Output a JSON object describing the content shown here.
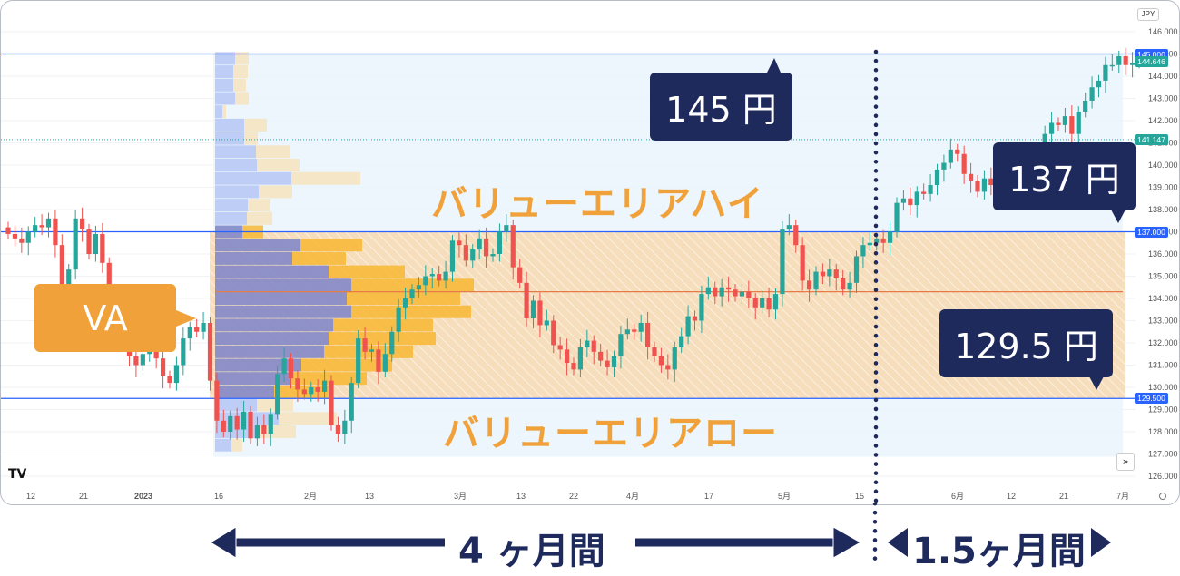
{
  "chart_data": {
    "type": "candlestick",
    "currency_label": "JPY",
    "y_ticks": [
      126,
      127,
      128,
      129,
      130,
      131,
      132,
      133,
      134,
      135,
      136,
      137,
      138,
      139,
      140,
      141,
      142,
      143,
      144,
      145,
      146
    ],
    "x_ticks": [
      "12",
      "21",
      "2023",
      "16",
      "2月",
      "13",
      "3月",
      "13",
      "22",
      "4月",
      "17",
      "5月",
      "15",
      "6月",
      "12",
      "21",
      "7月"
    ],
    "ylim": [
      125.6,
      146.5
    ],
    "price_tags": [
      {
        "label": "145.000",
        "value": 145.0,
        "color": "#2962ff"
      },
      {
        "label": "144.646",
        "value": 144.646,
        "color": "#26a69a"
      },
      {
        "label": "141.147",
        "value": 141.147,
        "color": "#26a69a"
      },
      {
        "label": "137.000",
        "value": 137.0,
        "color": "#2962ff"
      },
      {
        "label": "129.500",
        "value": 129.5,
        "color": "#2962ff"
      }
    ],
    "levels": {
      "high": 145.0,
      "value_area_high": 137.0,
      "value_area_low": 129.5,
      "poc": 134.3,
      "low": 127.2
    },
    "closes": [
      136.9,
      136.7,
      136.5,
      137.0,
      137.3,
      137.2,
      137.6,
      136.4,
      134.6,
      135.3,
      137.6,
      137.1,
      136.0,
      136.9,
      135.6,
      133.8,
      133.1,
      132.2,
      131.4,
      131.0,
      131.5,
      132.4,
      131.3,
      130.5,
      130.2,
      131.0,
      132.2,
      132.7,
      132.5,
      132.9,
      130.3,
      128.5,
      128.0,
      128.7,
      128.1,
      128.9,
      127.7,
      128.3,
      127.9,
      128.8,
      130.6,
      131.3,
      130.4,
      129.9,
      129.7,
      130.0,
      129.8,
      130.3,
      128.3,
      127.9,
      128.5,
      130.2,
      132.2,
      131.6,
      131.7,
      130.7,
      131.5,
      132.5,
      133.6,
      134.0,
      134.4,
      134.6,
      135.0,
      135.1,
      134.8,
      135.2,
      136.6,
      136.4,
      135.7,
      136.2,
      136.7,
      135.9,
      136.0,
      137.0,
      137.3,
      135.4,
      134.7,
      133.1,
      133.9,
      132.8,
      133.0,
      131.9,
      131.7,
      131.1,
      130.8,
      131.8,
      132.1,
      131.6,
      131.2,
      130.9,
      131.4,
      132.4,
      132.6,
      132.5,
      132.9,
      131.8,
      131.4,
      131.0,
      130.8,
      131.8,
      132.3,
      133.2,
      133.0,
      134.2,
      134.5,
      134.1,
      134.5,
      134.4,
      134.1,
      134.3,
      134.0,
      133.6,
      134.0,
      133.5,
      134.2,
      137.1,
      137.3,
      136.4,
      134.8,
      134.4,
      135.2,
      135.0,
      135.3,
      134.9,
      134.4,
      134.7,
      135.9,
      136.4,
      136.5,
      136.7,
      136.5,
      137.0,
      138.3,
      138.5,
      138.2,
      138.8,
      138.7,
      139.1,
      139.8,
      140.1,
      140.7,
      140.5,
      139.6,
      139.3,
      138.8,
      139.4,
      139.1,
      139.8,
      140.1,
      139.6,
      139.3,
      139.9,
      140.0,
      140.6,
      141.4,
      141.9,
      141.8,
      142.2,
      141.4,
      142.4,
      142.9,
      143.5,
      143.8,
      144.5,
      144.5,
      144.9,
      144.5,
      144.6,
      144.6
    ],
    "volume_profile": [
      {
        "price": 144.8,
        "up": 22,
        "down": 15
      },
      {
        "price": 144.2,
        "up": 20,
        "down": 16
      },
      {
        "price": 143.6,
        "up": 20,
        "down": 14
      },
      {
        "price": 143.0,
        "up": 22,
        "down": 15
      },
      {
        "price": 142.4,
        "up": 8,
        "down": 4
      },
      {
        "price": 141.8,
        "up": 32,
        "down": 25
      },
      {
        "price": 141.2,
        "up": 32,
        "down": 15
      },
      {
        "price": 140.6,
        "up": 45,
        "down": 38
      },
      {
        "price": 140.0,
        "up": 46,
        "down": 47
      },
      {
        "price": 139.4,
        "up": 84,
        "down": 76
      },
      {
        "price": 138.8,
        "up": 48,
        "down": 37
      },
      {
        "price": 138.2,
        "up": 36,
        "down": 25
      },
      {
        "price": 137.6,
        "up": 35,
        "down": 28
      },
      {
        "price": 137.0,
        "up": 30,
        "down": 23
      },
      {
        "price": 136.4,
        "up": 94,
        "down": 68
      },
      {
        "price": 135.8,
        "up": 85,
        "down": 59
      },
      {
        "price": 135.2,
        "up": 125,
        "down": 84
      },
      {
        "price": 134.6,
        "up": 150,
        "down": 135
      },
      {
        "price": 134.0,
        "up": 145,
        "down": 125
      },
      {
        "price": 133.4,
        "up": 150,
        "down": 132
      },
      {
        "price": 132.8,
        "up": 130,
        "down": 110
      },
      {
        "price": 132.2,
        "up": 125,
        "down": 118
      },
      {
        "price": 131.6,
        "up": 120,
        "down": 98
      },
      {
        "price": 131.0,
        "up": 95,
        "down": 100
      },
      {
        "price": 130.4,
        "up": 82,
        "down": 85
      },
      {
        "price": 129.8,
        "up": 65,
        "down": 60
      },
      {
        "price": 129.2,
        "up": 46,
        "down": 40
      },
      {
        "price": 128.6,
        "up": 70,
        "down": 64
      },
      {
        "price": 128.0,
        "up": 47,
        "down": 42
      },
      {
        "price": 127.4,
        "up": 18,
        "down": 12
      }
    ]
  },
  "annotations": {
    "callout_145": "145 円",
    "callout_137": "137 円",
    "callout_1295": "129.5 円",
    "va_label": "VA",
    "vah_label": "バリューエリアハイ",
    "val_label": "バリューエリアロー",
    "period_left": "4 ヶ月間",
    "period_right": "1.5ヶ月間"
  },
  "colors": {
    "up": "#26a69a",
    "down": "#ef5350",
    "navy": "#1f2a5c",
    "orange": "#f0a13a",
    "line": "#2962ff"
  }
}
